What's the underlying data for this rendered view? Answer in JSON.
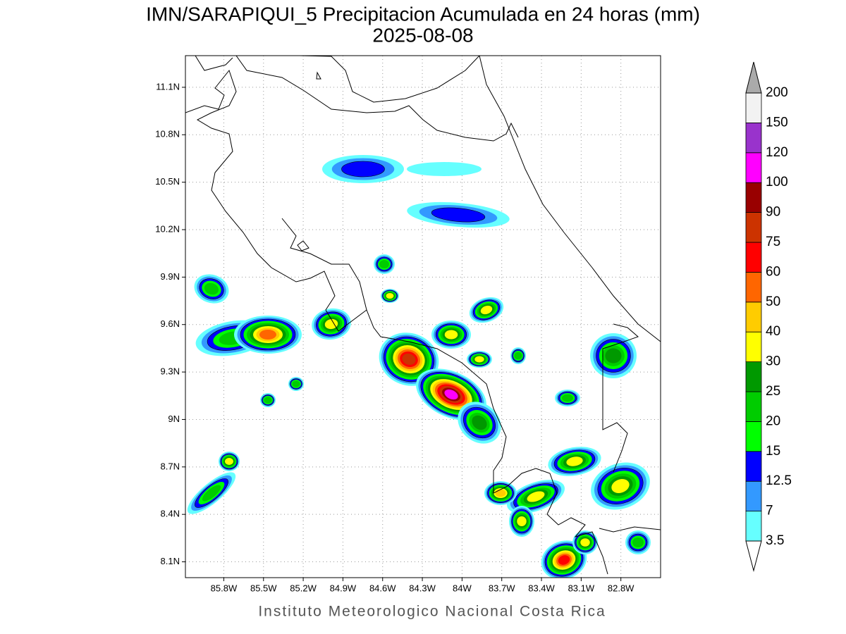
{
  "title": "IMN/SARAPIQUI_5 Precipitacion Acumulada en 24 horas (mm)",
  "subtitle": "2025-08-08",
  "footer": "Instituto Meteorologico Nacional Costa Rica",
  "map": {
    "xlim": [
      -86.09,
      -82.5
    ],
    "ylim": [
      8.0,
      11.3
    ],
    "xticks": [
      {
        "value": -85.8,
        "label": "85.8W"
      },
      {
        "value": -85.5,
        "label": "85.5W"
      },
      {
        "value": -85.2,
        "label": "85.2W"
      },
      {
        "value": -84.9,
        "label": "84.9W"
      },
      {
        "value": -84.6,
        "label": "84.6W"
      },
      {
        "value": -84.3,
        "label": "84.3W"
      },
      {
        "value": -84.0,
        "label": "84W"
      },
      {
        "value": -83.7,
        "label": "83.7W"
      },
      {
        "value": -83.4,
        "label": "83.4W"
      },
      {
        "value": -83.1,
        "label": "83.1W"
      },
      {
        "value": -82.8,
        "label": "82.8W"
      }
    ],
    "yticks": [
      {
        "value": 8.1,
        "label": "8.1N"
      },
      {
        "value": 8.4,
        "label": "8.4N"
      },
      {
        "value": 8.7,
        "label": "8.7N"
      },
      {
        "value": 9.0,
        "label": "9N"
      },
      {
        "value": 9.3,
        "label": "9.3N"
      },
      {
        "value": 9.6,
        "label": "9.6N"
      },
      {
        "value": 9.9,
        "label": "9.9N"
      },
      {
        "value": 10.2,
        "label": "10.2N"
      },
      {
        "value": 10.5,
        "label": "10.5N"
      },
      {
        "value": 10.8,
        "label": "10.8N"
      },
      {
        "value": 11.1,
        "label": "11.1N"
      }
    ],
    "grid": true
  },
  "legend": {
    "levels": [
      3.5,
      7,
      12.5,
      15,
      20,
      25,
      30,
      40,
      50,
      60,
      75,
      90,
      100,
      120,
      150,
      200
    ],
    "colors": [
      "#66ffff",
      "#3399ff",
      "#0000ff",
      "#00ff00",
      "#00cc00",
      "#009900",
      "#ffff00",
      "#ffcc00",
      "#ff6600",
      "#ff0000",
      "#cc3300",
      "#990000",
      "#ff00ff",
      "#9933cc",
      "#f2f2f2"
    ],
    "under_color": "#ffffff",
    "over_color": "#aaaaaa"
  }
}
